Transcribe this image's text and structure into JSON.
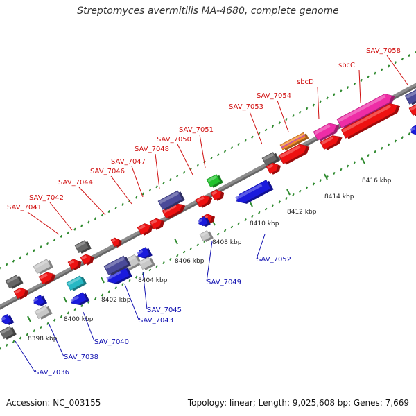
{
  "title": "Streptomyces avermitilis MA-4680, complete genome",
  "footer": {
    "accession": "Accession: NC_003155",
    "summary": "Topology: linear; Length: 9,025,608 bp; Genes: 7,669"
  },
  "colors": {
    "axis": "#8c8c8c",
    "tick": "#2f8a2f",
    "forward_label": "#d01010",
    "reverse_label": "#1010b0",
    "red": "#ee1111",
    "blue": "#1a1add",
    "gray": "#c8c8c8",
    "dark_gray": "#666666",
    "navy": "#4a4a99",
    "pink": "#ee2da6",
    "green": "#22c32e",
    "cyan": "#26b8c4",
    "orange": "#f18a2a"
  },
  "ruler": [
    {
      "label": "8398 kbp"
    },
    {
      "label": "8400 kbp"
    },
    {
      "label": "8402 kbp"
    },
    {
      "label": "8404 kbp"
    },
    {
      "label": "8406 kbp"
    },
    {
      "label": "8408 kbp"
    },
    {
      "label": "8410 kbp"
    },
    {
      "label": "8412 kbp"
    },
    {
      "label": "8414 kbp"
    },
    {
      "label": "8416 kbp"
    }
  ],
  "forward_labels": [
    {
      "text": "SAV_7041"
    },
    {
      "text": "SAV_7042"
    },
    {
      "text": "SAV_7044"
    },
    {
      "text": "SAV_7046"
    },
    {
      "text": "SAV_7047"
    },
    {
      "text": "SAV_7048"
    },
    {
      "text": "SAV_7050"
    },
    {
      "text": "SAV_7051"
    },
    {
      "text": "SAV_7053"
    },
    {
      "text": "SAV_7054"
    },
    {
      "text": "sbcD"
    },
    {
      "text": "sbcC"
    },
    {
      "text": "SAV_7058"
    }
  ],
  "reverse_labels": [
    {
      "text": "SAV_7036"
    },
    {
      "text": "SAV_7038"
    },
    {
      "text": "SAV_7040"
    },
    {
      "text": "SAV_7043"
    },
    {
      "text": "SAV_7045"
    },
    {
      "text": "SAV_7049"
    },
    {
      "text": "SAV_7052"
    }
  ],
  "features": [
    {
      "color": "dark_gray",
      "dir": "none"
    },
    {
      "color": "red",
      "dir": "fwd"
    },
    {
      "color": "dark_gray",
      "dir": "none"
    },
    {
      "color": "red",
      "dir": "fwd"
    },
    {
      "color": "gray",
      "dir": "none"
    },
    {
      "color": "red",
      "dir": "fwd"
    },
    {
      "color": "dark_gray",
      "dir": "none"
    },
    {
      "color": "red",
      "dir": "fwd"
    },
    {
      "color": "red",
      "dir": "fwd"
    },
    {
      "color": "red",
      "dir": "fwd"
    },
    {
      "color": "red",
      "dir": "fwd"
    },
    {
      "color": "red",
      "dir": "fwd"
    },
    {
      "color": "navy",
      "dir": "none"
    },
    {
      "color": "red",
      "dir": "fwd"
    },
    {
      "color": "red",
      "dir": "fwd"
    },
    {
      "color": "red",
      "dir": "fwd"
    },
    {
      "color": "green",
      "dir": "none"
    },
    {
      "color": "dark_gray",
      "dir": "none"
    },
    {
      "color": "red",
      "dir": "fwd"
    },
    {
      "color": "orange",
      "dir": "none"
    },
    {
      "color": "red",
      "dir": "fwd"
    },
    {
      "color": "pink",
      "dir": "fwd"
    },
    {
      "color": "red",
      "dir": "fwd"
    },
    {
      "color": "pink",
      "dir": "fwd"
    },
    {
      "color": "red",
      "dir": "fwd"
    },
    {
      "color": "navy",
      "dir": "none"
    },
    {
      "color": "red",
      "dir": "fwd"
    },
    {
      "color": "blue",
      "dir": "rev"
    },
    {
      "color": "gray",
      "dir": "none"
    },
    {
      "color": "blue",
      "dir": "rev"
    },
    {
      "color": "gray",
      "dir": "none"
    },
    {
      "color": "blue",
      "dir": "rev"
    },
    {
      "color": "cyan",
      "dir": "none"
    },
    {
      "color": "blue",
      "dir": "rev"
    },
    {
      "color": "navy",
      "dir": "none"
    },
    {
      "color": "blue",
      "dir": "rev"
    },
    {
      "color": "gray",
      "dir": "none"
    },
    {
      "color": "blue",
      "dir": "rev"
    },
    {
      "color": "gray",
      "dir": "none"
    },
    {
      "color": "blue",
      "dir": "rev"
    },
    {
      "color": "blue",
      "dir": "rev"
    }
  ]
}
